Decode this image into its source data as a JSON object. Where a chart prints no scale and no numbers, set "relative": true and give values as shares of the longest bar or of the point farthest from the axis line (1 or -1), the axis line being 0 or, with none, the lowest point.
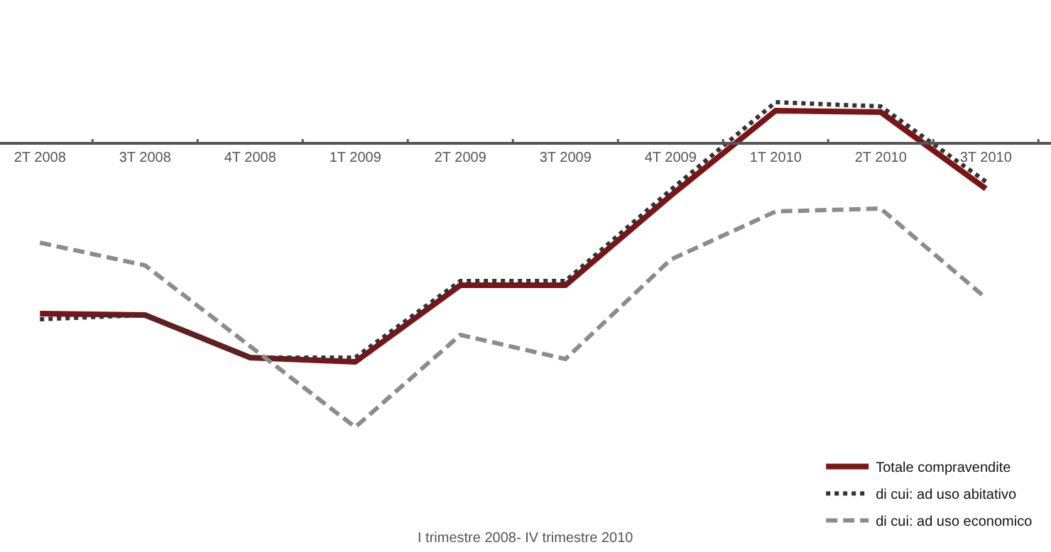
{
  "chart_data": {
    "type": "line",
    "relative": true,
    "categories": [
      "2T 2008",
      "3T 2008",
      "4T 2008",
      "1T 2009",
      "2T 2009",
      "3T 2009",
      "4T 2009",
      "1T 2010",
      "2T 2010",
      "3T 2010"
    ],
    "series": [
      {
        "name": "Totale compravendite",
        "color": "#7b1416",
        "line_style": "solid",
        "values": [
          -0.6,
          -0.605,
          -0.755,
          -0.77,
          -0.5,
          -0.5,
          -0.185,
          0.115,
          0.11,
          -0.16
        ]
      },
      {
        "name": "di cui: ad uso abitativo",
        "color": "#333333",
        "line_style": "dotted",
        "values": [
          -0.62,
          -0.605,
          -0.755,
          -0.755,
          -0.485,
          -0.485,
          -0.165,
          0.145,
          0.13,
          -0.135
        ]
      },
      {
        "name": "di cui: ad uso economico",
        "color": "#8c8c8c",
        "line_style": "dashed",
        "values": [
          -0.35,
          -0.43,
          -0.715,
          -1,
          -0.675,
          -0.76,
          -0.41,
          -0.24,
          -0.23,
          -0.545
        ]
      }
    ],
    "legend": "bottom right",
    "marker": "none",
    "annotations": [
      "I trimestre 2008- IV trimestre 2010"
    ]
  }
}
